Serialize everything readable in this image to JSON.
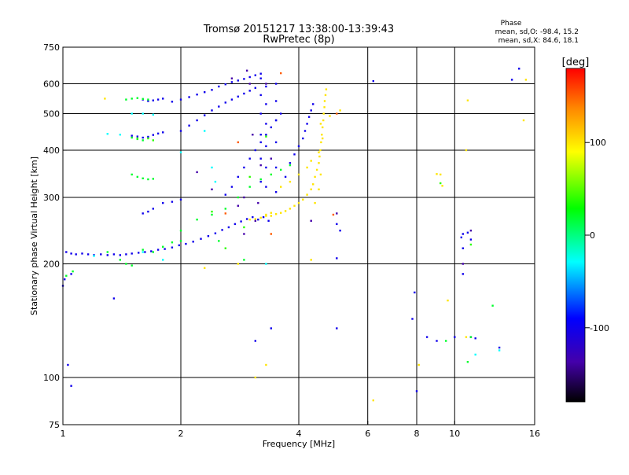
{
  "chart_data": {
    "type": "scatter",
    "title": "Tromsø 20151217 13:38:00-13:39:43",
    "subtitle": "RwPretec (8p)",
    "xlabel": "Frequency [MHz]",
    "ylabel": "Stationary phase Virtual Height [km]",
    "x_scale": "log",
    "y_scale": "log",
    "xlim": [
      1,
      16
    ],
    "ylim": [
      75,
      750
    ],
    "x_ticks": [
      1,
      2,
      4,
      6,
      8,
      10,
      16
    ],
    "x_tick_labels": [
      "1",
      "2",
      "4",
      "6",
      "8",
      "10",
      "16"
    ],
    "y_ticks": [
      75,
      100,
      200,
      300,
      400,
      500,
      600,
      750
    ],
    "y_tick_labels": [
      "75",
      "100",
      "200",
      "300",
      "400",
      "500",
      "600",
      "750"
    ],
    "grid": true,
    "stats": {
      "title": "Phase",
      "line_o": "mean, sd,O: -98.4, 15.2",
      "line_x": "mean, sd,X:  84.6, 18.1"
    },
    "colorbar": {
      "label": "[deg]",
      "range": [
        -180,
        180
      ],
      "ticks": [
        100,
        0,
        -100
      ],
      "tick_labels": [
        "100",
        "0",
        "-100"
      ],
      "colors": [
        "#ff0000",
        "#ff8800",
        "#ffff00",
        "#00ff00",
        "#00ffff",
        "#0000ff",
        "#4400aa",
        "#000000"
      ]
    },
    "series": [
      {
        "points": [
          [
            1.02,
            215
          ],
          [
            1.05,
            213
          ],
          [
            1.08,
            212
          ],
          [
            1.12,
            213
          ],
          [
            1.16,
            212
          ],
          [
            1.2,
            211
          ],
          [
            1.25,
            212
          ],
          [
            1.3,
            211
          ],
          [
            1.35,
            212
          ],
          [
            1.4,
            211
          ],
          [
            1.45,
            212
          ],
          [
            1.5,
            213
          ],
          [
            1.56,
            214
          ],
          [
            1.62,
            215
          ],
          [
            1.68,
            216
          ],
          [
            1.75,
            218
          ],
          [
            1.82,
            219
          ],
          [
            1.9,
            221
          ],
          [
            1.98,
            224
          ],
          [
            2.06,
            226
          ],
          [
            2.15,
            229
          ],
          [
            2.25,
            233
          ],
          [
            2.35,
            237
          ],
          [
            2.45,
            241
          ],
          [
            2.55,
            246
          ],
          [
            2.65,
            250
          ],
          [
            2.75,
            255
          ],
          [
            2.85,
            259
          ],
          [
            2.95,
            263
          ],
          [
            3.05,
            266
          ],
          [
            3.15,
            262
          ],
          [
            3.25,
            266
          ],
          [
            3.35,
            260
          ],
          [
            1.5,
            437
          ],
          [
            1.55,
            435
          ],
          [
            1.6,
            432
          ],
          [
            1.65,
            434
          ],
          [
            1.7,
            439
          ],
          [
            1.75,
            443
          ],
          [
            1.8,
            446
          ],
          [
            1.6,
            545
          ],
          [
            1.65,
            540
          ],
          [
            1.7,
            542
          ],
          [
            1.75,
            545
          ],
          [
            1.8,
            548
          ],
          [
            1.9,
            538
          ],
          [
            2.0,
            545
          ],
          [
            2.1,
            553
          ],
          [
            2.2,
            562
          ],
          [
            2.3,
            570
          ],
          [
            2.4,
            578
          ],
          [
            2.5,
            590
          ],
          [
            2.6,
            598
          ],
          [
            2.7,
            606
          ],
          [
            2.8,
            612
          ],
          [
            2.9,
            618
          ],
          [
            3.0,
            625
          ],
          [
            3.1,
            632
          ],
          [
            3.2,
            638
          ],
          [
            2.0,
            450
          ],
          [
            2.1,
            465
          ],
          [
            2.2,
            480
          ],
          [
            2.3,
            495
          ],
          [
            2.4,
            510
          ],
          [
            2.5,
            522
          ],
          [
            2.6,
            535
          ],
          [
            2.7,
            545
          ],
          [
            2.8,
            555
          ],
          [
            2.9,
            565
          ],
          [
            3.0,
            575
          ],
          [
            3.1,
            585
          ],
          [
            2.6,
            305
          ],
          [
            2.7,
            320
          ],
          [
            2.8,
            340
          ],
          [
            2.9,
            360
          ],
          [
            3.0,
            380
          ],
          [
            3.1,
            400
          ],
          [
            3.2,
            420
          ],
          [
            3.3,
            440
          ],
          [
            3.4,
            460
          ],
          [
            3.5,
            480
          ],
          [
            3.6,
            500
          ],
          [
            3.2,
            330
          ],
          [
            3.2,
            380
          ],
          [
            3.2,
            440
          ],
          [
            3.2,
            500
          ],
          [
            3.2,
            560
          ],
          [
            3.2,
            620
          ],
          [
            3.3,
            320
          ],
          [
            3.3,
            360
          ],
          [
            3.3,
            410
          ],
          [
            3.3,
            470
          ],
          [
            3.3,
            530
          ],
          [
            3.3,
            590
          ],
          [
            3.5,
            310
          ],
          [
            3.5,
            360
          ],
          [
            3.5,
            420
          ],
          [
            3.5,
            480
          ],
          [
            3.5,
            540
          ],
          [
            3.5,
            600
          ],
          [
            3.7,
            340
          ],
          [
            3.8,
            370
          ],
          [
            3.9,
            390
          ],
          [
            4.0,
            410
          ],
          [
            4.1,
            430
          ],
          [
            4.15,
            450
          ],
          [
            4.2,
            470
          ],
          [
            4.25,
            490
          ],
          [
            4.3,
            510
          ],
          [
            4.35,
            530
          ],
          [
            1.8,
            290
          ],
          [
            1.9,
            292
          ],
          [
            2.0,
            296
          ],
          [
            1.7,
            280
          ],
          [
            1.6,
            272
          ],
          [
            1.65,
            275
          ],
          [
            1.01,
            182
          ],
          [
            1.05,
            188
          ],
          [
            1.35,
            162
          ],
          [
            1.05,
            95
          ],
          [
            1.03,
            108
          ],
          [
            1.0,
            175
          ],
          [
            6.2,
            610
          ],
          [
            5.0,
            255
          ],
          [
            5.1,
            245
          ],
          [
            5.0,
            135
          ],
          [
            5.0,
            207
          ],
          [
            3.4,
            135
          ],
          [
            3.1,
            125
          ],
          [
            7.9,
            168
          ],
          [
            7.8,
            143
          ],
          [
            8.5,
            128
          ],
          [
            9.0,
            125
          ],
          [
            10.0,
            128
          ],
          [
            10.5,
            240
          ],
          [
            10.8,
            242
          ],
          [
            11.0,
            232
          ],
          [
            11.0,
            128
          ],
          [
            11.3,
            127
          ],
          [
            13.0,
            120
          ],
          [
            14.0,
            615
          ],
          [
            14.6,
            658
          ],
          [
            10.5,
            220
          ],
          [
            8.0,
            92
          ],
          [
            10.5,
            188
          ],
          [
            10.4,
            235
          ]
        ],
        "value": -100
      },
      {
        "points": [
          [
            1.45,
            545
          ],
          [
            1.5,
            548
          ],
          [
            1.55,
            550
          ],
          [
            1.6,
            547
          ],
          [
            1.65,
            545
          ],
          [
            1.5,
            432
          ],
          [
            1.55,
            428
          ],
          [
            1.6,
            425
          ],
          [
            1.5,
            345
          ],
          [
            1.55,
            340
          ],
          [
            1.6,
            337
          ],
          [
            1.65,
            335
          ],
          [
            1.7,
            336
          ],
          [
            2.0,
            245
          ],
          [
            2.2,
            262
          ],
          [
            2.4,
            270
          ],
          [
            2.6,
            280
          ],
          [
            2.8,
            300
          ],
          [
            3.0,
            320
          ],
          [
            3.2,
            335
          ],
          [
            3.4,
            345
          ],
          [
            3.6,
            355
          ],
          [
            3.8,
            365
          ],
          [
            1.3,
            215
          ],
          [
            1.4,
            205
          ],
          [
            1.45,
            200
          ],
          [
            1.5,
            198
          ],
          [
            1.6,
            218
          ],
          [
            1.7,
            215
          ],
          [
            1.8,
            222
          ],
          [
            1.9,
            228
          ],
          [
            2.0,
            230
          ],
          [
            1.02,
            186
          ],
          [
            1.06,
            191
          ],
          [
            2.5,
            230
          ],
          [
            2.9,
            205
          ],
          [
            10.8,
            110
          ],
          [
            11.0,
            128
          ],
          [
            9.5,
            125
          ],
          [
            12.5,
            155
          ]
        ],
        "value": 20
      },
      {
        "points": [
          [
            3.2,
            265
          ],
          [
            3.3,
            268
          ],
          [
            3.4,
            268
          ],
          [
            3.5,
            271
          ],
          [
            3.6,
            273
          ],
          [
            3.7,
            276
          ],
          [
            3.8,
            280
          ],
          [
            3.9,
            285
          ],
          [
            4.0,
            290
          ],
          [
            4.1,
            296
          ],
          [
            4.2,
            305
          ],
          [
            4.3,
            315
          ],
          [
            4.35,
            325
          ],
          [
            4.4,
            340
          ],
          [
            4.45,
            355
          ],
          [
            4.5,
            370
          ],
          [
            4.52,
            385
          ],
          [
            4.54,
            400
          ],
          [
            4.56,
            420
          ],
          [
            4.58,
            440
          ],
          [
            4.6,
            460
          ],
          [
            4.62,
            480
          ],
          [
            4.63,
            500
          ],
          [
            4.65,
            520
          ],
          [
            4.66,
            540
          ],
          [
            4.68,
            560
          ],
          [
            4.7,
            580
          ],
          [
            3.6,
            320
          ],
          [
            3.8,
            330
          ],
          [
            4.0,
            345
          ],
          [
            4.2,
            360
          ],
          [
            4.3,
            375
          ],
          [
            3.0,
            262
          ],
          [
            3.1,
            263
          ],
          [
            3.4,
            273
          ],
          [
            3.3,
            270
          ],
          [
            4.4,
            290
          ],
          [
            4.5,
            315
          ],
          [
            4.55,
            345
          ],
          [
            4.5,
            395
          ],
          [
            4.6,
            430
          ],
          [
            4.55,
            470
          ],
          [
            1.28,
            548
          ],
          [
            3.3,
            108
          ],
          [
            3.1,
            100
          ],
          [
            8.1,
            108
          ],
          [
            9.3,
            322
          ],
          [
            9.2,
            345
          ],
          [
            9.0,
            346
          ],
          [
            9.6,
            160
          ],
          [
            10.7,
            400
          ],
          [
            10.8,
            542
          ],
          [
            10.7,
            128
          ],
          [
            6.2,
            87
          ],
          [
            15.0,
            480
          ],
          [
            15.2,
            615
          ],
          [
            4.3,
            205
          ],
          [
            5.1,
            510
          ],
          [
            4.8,
            493
          ],
          [
            2.3,
            195
          ],
          [
            2.8,
            200
          ]
        ],
        "value": 100
      },
      {
        "points": [
          [
            1.55,
            430
          ],
          [
            1.65,
            430
          ],
          [
            1.7,
            425
          ],
          [
            3.0,
            340
          ],
          [
            2.6,
            220
          ],
          [
            2.9,
            250
          ],
          [
            3.3,
            435
          ],
          [
            11.0,
            225
          ],
          [
            9.2,
            327
          ],
          [
            2.4,
            275
          ]
        ],
        "value": 40
      },
      {
        "points": [
          [
            2.7,
            620
          ],
          [
            3.0,
            600
          ],
          [
            3.3,
            600
          ],
          [
            2.95,
            650
          ],
          [
            2.2,
            350
          ],
          [
            2.9,
            300
          ],
          [
            3.1,
            260
          ],
          [
            3.15,
            290
          ],
          [
            3.2,
            365
          ],
          [
            2.9,
            240
          ],
          [
            2.8,
            285
          ],
          [
            2.4,
            315
          ],
          [
            3.4,
            380
          ],
          [
            3.05,
            440
          ],
          [
            5.0,
            272
          ],
          [
            4.3,
            260
          ],
          [
            11.0,
            245
          ],
          [
            10.5,
            200
          ]
        ],
        "value": -135
      },
      {
        "points": [
          [
            3.4,
            240
          ],
          [
            2.6,
            272
          ],
          [
            2.8,
            420
          ],
          [
            3.6,
            640
          ],
          [
            4.9,
            270
          ],
          [
            5.0,
            500
          ]
        ],
        "value": 150
      },
      {
        "points": [
          [
            1.3,
            442
          ],
          [
            1.4,
            440
          ],
          [
            1.5,
            500
          ],
          [
            1.6,
            500
          ],
          [
            1.7,
            497
          ],
          [
            1.2,
            210
          ],
          [
            1.6,
            215
          ],
          [
            1.8,
            205
          ],
          [
            2.0,
            395
          ],
          [
            2.3,
            450
          ],
          [
            2.4,
            360
          ],
          [
            2.45,
            330
          ],
          [
            3.3,
            200
          ],
          [
            13.0,
            118
          ],
          [
            11.3,
            115
          ]
        ],
        "value": -30
      }
    ]
  }
}
